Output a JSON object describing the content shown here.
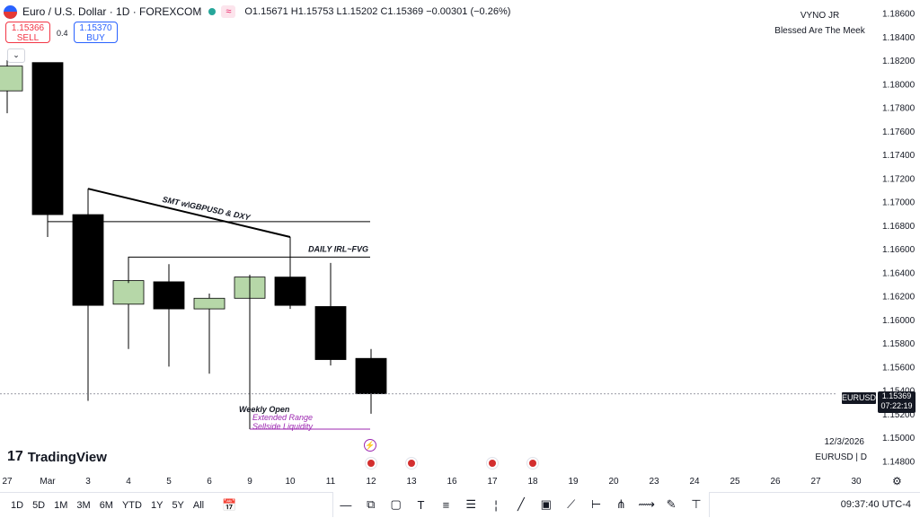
{
  "header": {
    "title": "Euro / U.S. Dollar · 1D · FOREXCOM",
    "ohlc": "O1.15671 H1.15753 L1.15202 C1.15369 −0.00301 (−0.26%)",
    "sell_price": "1.15366",
    "sell_label": "SELL",
    "spread": "0.4",
    "buy_price": "1.15370",
    "buy_label": "BUY"
  },
  "user": {
    "name": "VYNO JR",
    "tagline": "Blessed Are The Meek"
  },
  "brand": {
    "name": "TradingView",
    "mark": "17"
  },
  "info": {
    "date": "12/3/2026",
    "symbol": "EURUSD | D",
    "symbol_tag": "EURUSD",
    "last_price": "1.15369",
    "countdown": "07:22:19"
  },
  "timeframes": [
    "1D",
    "5D",
    "1M",
    "3M",
    "6M",
    "YTD",
    "1Y",
    "5Y",
    "All"
  ],
  "clock": "09:37:40 UTC-4",
  "icons": [
    "calendar-icon",
    "horizontal-line-icon",
    "node-icon",
    "rectangle-icon",
    "text-icon",
    "parallel-channel-icon",
    "fib-icon",
    "vertical-line-icon",
    "trend-line-icon",
    "path-icon",
    "brush-icon",
    "ray-icon",
    "pitchfork-icon",
    "zigzag-icon",
    "pen-icon",
    "measure-icon"
  ],
  "colors": {
    "bull": "#b6d7a8",
    "bear": "#000000",
    "annotation_purple": "#9c27b0",
    "accent": "#2962ff"
  },
  "chart_data": {
    "type": "candlestick",
    "y_ticks": [
      "1.18600",
      "1.18400",
      "1.18200",
      "1.18000",
      "1.17800",
      "1.17600",
      "1.17400",
      "1.17200",
      "1.17000",
      "1.16800",
      "1.16600",
      "1.16400",
      "1.16200",
      "1.16000",
      "1.15800",
      "1.15600",
      "1.15400",
      "1.15200",
      "1.15000",
      "1.14800"
    ],
    "ylim": [
      1.1475,
      1.1865
    ],
    "x_ticks": [
      "27",
      "Mar",
      "3",
      "4",
      "5",
      "6",
      "9",
      "10",
      "11",
      "12",
      "13",
      "16",
      "17",
      "18",
      "19",
      "20",
      "23",
      "24",
      "25",
      "26",
      "27",
      "30"
    ],
    "candles": [
      {
        "date": "27",
        "open": 1.1794,
        "high": 1.182,
        "low": 1.1775,
        "close": 1.1815
      },
      {
        "date": "2",
        "open": 1.1818,
        "high": 1.1818,
        "low": 1.167,
        "close": 1.1689
      },
      {
        "date": "3",
        "open": 1.1689,
        "high": 1.1711,
        "low": 1.1531,
        "close": 1.1612
      },
      {
        "date": "4",
        "open": 1.1613,
        "high": 1.1653,
        "low": 1.1575,
        "close": 1.1633
      },
      {
        "date": "5",
        "open": 1.1632,
        "high": 1.1647,
        "low": 1.156,
        "close": 1.1609
      },
      {
        "date": "6",
        "open": 1.1609,
        "high": 1.1622,
        "low": 1.1554,
        "close": 1.1618
      },
      {
        "date": "9",
        "open": 1.1618,
        "high": 1.1638,
        "low": 1.1523,
        "close": 1.1636
      },
      {
        "date": "10",
        "open": 1.1636,
        "high": 1.167,
        "low": 1.1609,
        "close": 1.1612
      },
      {
        "date": "11",
        "open": 1.1611,
        "high": 1.1648,
        "low": 1.1561,
        "close": 1.1566
      },
      {
        "date": "12",
        "open": 1.1567,
        "high": 1.1575,
        "low": 1.152,
        "close": 1.1537
      }
    ],
    "current_price": 1.15369,
    "annotations": [
      {
        "text": "SMT w\\GBPUSD & DXY"
      },
      {
        "text": "DAILY IRL~FVG"
      },
      {
        "text": "Weekly Open"
      },
      {
        "text": "Extended Range"
      },
      {
        "text": "Sellside Liquidity"
      }
    ]
  }
}
